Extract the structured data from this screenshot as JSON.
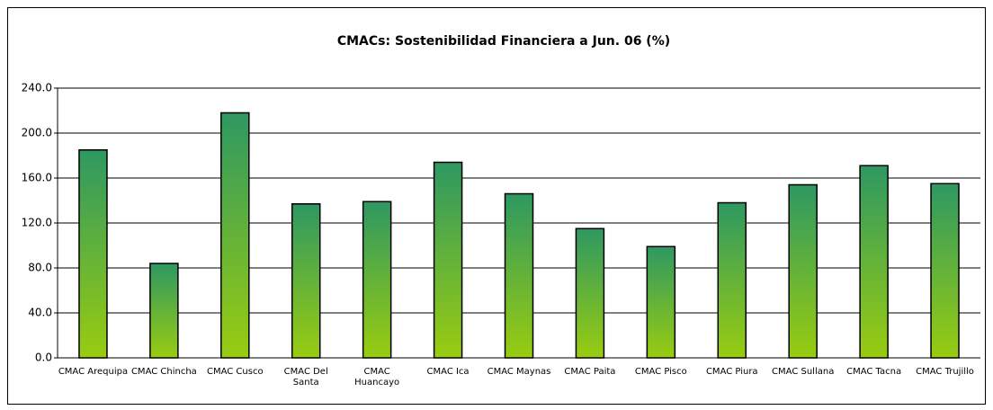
{
  "chart_data": {
    "type": "bar",
    "title": "CMACs: Sostenibilidad Financiera a Jun. 06 (%)",
    "categories": [
      "CMAC Arequipa",
      "CMAC Chincha",
      "CMAC Cusco",
      "CMAC Del Santa",
      "CMAC Huancayo",
      "CMAC Ica",
      "CMAC Maynas",
      "CMAC Paita",
      "CMAC Pisco",
      "CMAC Piura",
      "CMAC Sullana",
      "CMAC Tacna",
      "CMAC Trujillo"
    ],
    "values": [
      185,
      84,
      218,
      137,
      139,
      174,
      146,
      115,
      99,
      138,
      154,
      171,
      155
    ],
    "gradient": [
      "#2e9862",
      "#99cc10"
    ],
    "ylim": [
      0,
      240
    ],
    "yticks": [
      {
        "value": 0,
        "label": "0.0"
      },
      {
        "value": 40,
        "label": "40.0"
      },
      {
        "value": 80,
        "label": "80.0"
      },
      {
        "value": 120,
        "label": "120.0"
      },
      {
        "value": 160,
        "label": "160.0"
      },
      {
        "value": 200,
        "label": "200.0"
      },
      {
        "value": 240,
        "label": "240.0"
      }
    ],
    "grid": true
  }
}
